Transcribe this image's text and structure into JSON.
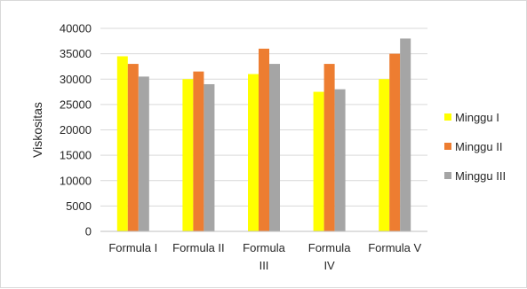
{
  "chart_data": {
    "type": "bar",
    "categories": [
      [
        "Formula I"
      ],
      [
        "Formula II"
      ],
      [
        "Formula",
        "III"
      ],
      [
        "Formula",
        "IV"
      ],
      [
        "Formula V"
      ]
    ],
    "series": [
      {
        "name": "Minggu I",
        "color": "#ffff00",
        "values": [
          34500,
          30000,
          31000,
          27500,
          30000
        ]
      },
      {
        "name": "Minggu II",
        "color": "#ed7d31",
        "values": [
          33000,
          31500,
          36000,
          33000,
          35000
        ]
      },
      {
        "name": "Minggu III",
        "color": "#a5a5a5",
        "values": [
          30500,
          29000,
          33000,
          28000,
          38000
        ]
      }
    ],
    "title": "",
    "xlabel": "",
    "ylabel": "Viskositas",
    "ylim": [
      0,
      40000
    ],
    "yticks": [
      0,
      5000,
      10000,
      15000,
      20000,
      25000,
      30000,
      35000,
      40000
    ],
    "grid": true,
    "legend_position": "right"
  }
}
